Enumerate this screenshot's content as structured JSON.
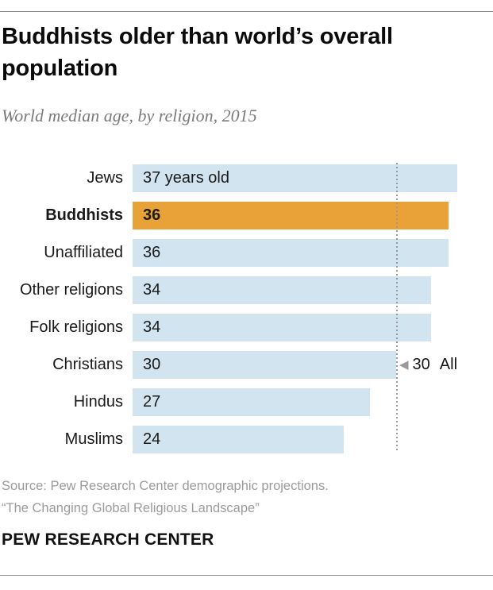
{
  "header": {
    "title_line1": "Buddhists older than world’s overall",
    "title_line2": "population"
  },
  "footer": {
    "source": "Source: Pew Research Center demographic projections.",
    "citation": "“The Changing Global Religious Landscape”",
    "brand": "PEW RESEARCH CENTER"
  },
  "chart_data": {
    "type": "bar",
    "orientation": "horizontal",
    "title": "Buddhists older than world’s overall population",
    "subtitle": "World median age, by religion, 2015",
    "categories": [
      "Jews",
      "Buddhists",
      "Unaffiliated",
      "Other religions",
      "Folk religions",
      "Christians",
      "Hindus",
      "Muslims"
    ],
    "values": [
      37,
      36,
      36,
      34,
      34,
      30,
      27,
      24
    ],
    "bar_labels": [
      "37 years old",
      "36",
      "36",
      "34",
      "34",
      "30",
      "27",
      "24"
    ],
    "unit": "years",
    "highlight_category": "Buddhists",
    "colors": {
      "bar": "#D2E4F0",
      "highlight": "#E9A238",
      "reference_line": "#999999"
    },
    "reference_line": {
      "value": 30,
      "value_label": "30",
      "label": "All",
      "style": "dotted",
      "marker": "left-triangle"
    },
    "xlim": [
      0,
      41
    ],
    "grid": false,
    "value_labels_position": "inside-start",
    "legend": null
  }
}
